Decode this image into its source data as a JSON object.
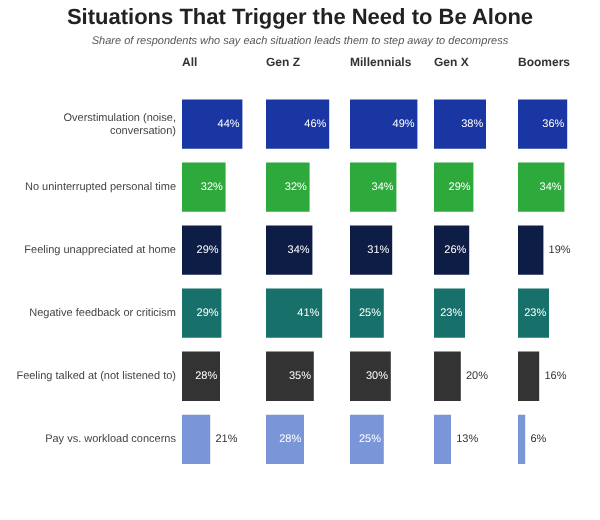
{
  "chart_data": [
    {
      "type": "other",
      "title": "Situations That Trigger the Need to Be Alone",
      "subtitle": "Share of respondents who say each situation leads them to step away to decompress"
    },
    {
      "type": "bar",
      "orientation": "horizontal",
      "title": "All",
      "categories": [
        "Overstimulation (noise, conversation)",
        "No uninterrupted personal time",
        "Feeling unappreciated at home",
        "Negative feedback or criticism",
        "Feeling talked at (not listened to)",
        "Pay vs. workload concerns"
      ],
      "colors": [
        "#1a36a2",
        "#2eaa3c",
        "#0e1d45",
        "#17706a",
        "#333333",
        "#7a96d8"
      ],
      "tick_labels": "y",
      "values": [
        44,
        32,
        29,
        29,
        28,
        21
      ],
      "value_labels": [
        "44%",
        "32%",
        "29%",
        "29%",
        "28%",
        "21%"
      ]
    },
    {
      "type": "bar",
      "orientation": "horizontal",
      "title": "Gen Z",
      "colors": [
        "#1a36a2",
        "#2eaa3c",
        "#0e1d45",
        "#17706a",
        "#333333",
        "#7a96d8"
      ],
      "tick_labels": false,
      "values": [
        46,
        32,
        34,
        41,
        35,
        28
      ],
      "value_labels": [
        "46%",
        "32%",
        "34%",
        "41%",
        "35%",
        "28%"
      ]
    },
    {
      "type": "bar",
      "orientation": "horizontal",
      "title": "Millennials",
      "colors": [
        "#1a36a2",
        "#2eaa3c",
        "#0e1d45",
        "#17706a",
        "#333333",
        "#7a96d8"
      ],
      "tick_labels": false,
      "values": [
        49,
        34,
        31,
        25,
        30,
        25
      ],
      "value_labels": [
        "49%",
        "34%",
        "31%",
        "25%",
        "30%",
        "25%"
      ]
    },
    {
      "type": "bar",
      "orientation": "horizontal",
      "title": "Gen X",
      "colors": [
        "#1a36a2",
        "#2eaa3c",
        "#0e1d45",
        "#17706a",
        "#333333",
        "#7a96d8"
      ],
      "tick_labels": false,
      "values": [
        38,
        29,
        26,
        23,
        20,
        13
      ],
      "value_labels": [
        "38%",
        "29%",
        "26%",
        "23%",
        "20%",
        "13%"
      ]
    },
    {
      "type": "bar",
      "orientation": "horizontal",
      "title": "Boomers",
      "colors": [
        "#1a36a2",
        "#2eaa3c",
        "#0e1d45",
        "#17706a",
        "#333333",
        "#7a96d8"
      ],
      "tick_labels": false,
      "values": [
        36,
        34,
        19,
        23,
        16,
        6
      ],
      "value_labels": [
        "36%",
        "34%",
        "19%",
        "23%",
        "16%",
        "6%"
      ]
    }
  ]
}
